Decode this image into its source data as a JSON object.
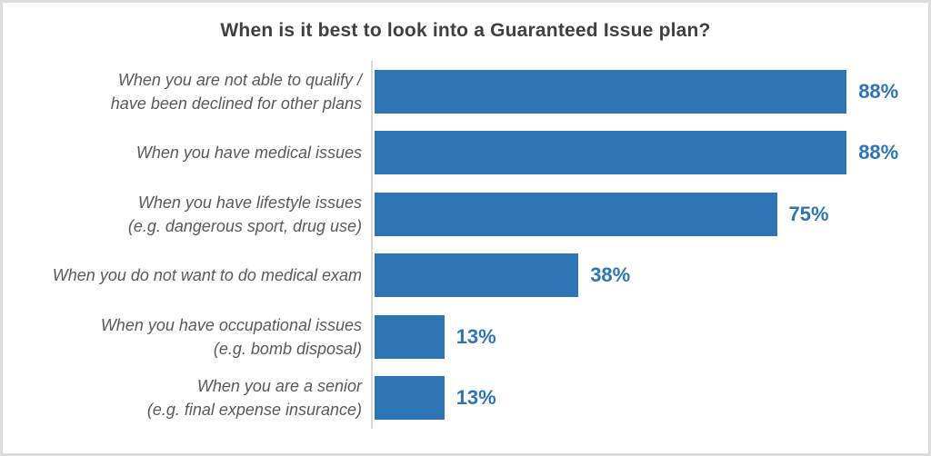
{
  "chart_data": {
    "type": "bar",
    "orientation": "horizontal",
    "title": "When is it best to look into a Guaranteed Issue plan?",
    "categories": [
      "When you are not able to qualify /\nhave been declined for other plans",
      "When you have medical issues",
      "When you have lifestyle issues\n(e.g. dangerous sport, drug use)",
      "When you do not want to do medical exam",
      "When you have occupational issues\n(e.g. bomb disposal)",
      "When you are a senior\n(e.g. final expense insurance)"
    ],
    "values": [
      88,
      88,
      75,
      38,
      13,
      13
    ],
    "value_labels": [
      "88%",
      "88%",
      "75%",
      "38%",
      "13%",
      "13%"
    ],
    "value_suffix": "%",
    "xlim": [
      0,
      100
    ],
    "grid": false,
    "legend": false,
    "bar_color": "#2e75b6",
    "value_label_color": "#2e75b6",
    "category_label_color": "#595959",
    "title_color": "#404040",
    "axis_line_color": "#d9d9d9"
  }
}
